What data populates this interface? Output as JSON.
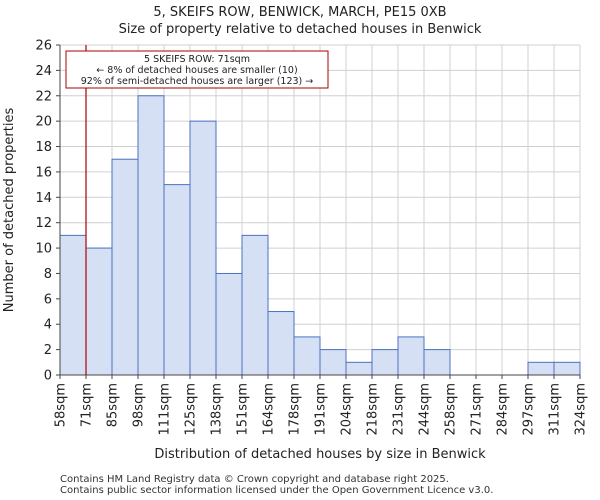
{
  "chart_data": {
    "type": "bar",
    "title_line1": "5, SKEIFS ROW, BENWICK, MARCH, PE15 0XB",
    "title_line2": "Size of property relative to detached houses in Benwick",
    "xlabel": "Distribution of detached houses by size in Benwick",
    "ylabel": "Number of detached properties",
    "bin_edges": [
      58,
      71,
      85,
      98,
      111,
      125,
      138,
      151,
      164,
      178,
      191,
      204,
      218,
      231,
      244,
      258,
      271,
      284,
      297,
      311,
      324
    ],
    "tick_labels": [
      "58sqm",
      "71sqm",
      "85sqm",
      "98sqm",
      "111sqm",
      "125sqm",
      "138sqm",
      "151sqm",
      "164sqm",
      "178sqm",
      "191sqm",
      "204sqm",
      "218sqm",
      "231sqm",
      "244sqm",
      "258sqm",
      "271sqm",
      "284sqm",
      "297sqm",
      "311sqm",
      "324sqm"
    ],
    "values": [
      11,
      10,
      17,
      22,
      15,
      20,
      8,
      11,
      5,
      3,
      2,
      1,
      2,
      3,
      2,
      0,
      0,
      0,
      1,
      1
    ],
    "ylim": [
      0,
      26
    ],
    "yticks": [
      0,
      2,
      4,
      6,
      8,
      10,
      12,
      14,
      16,
      18,
      20,
      22,
      24,
      26
    ],
    "marker_value": 71,
    "annotation": {
      "line1": "5 SKEIFS ROW: 71sqm",
      "line2": "← 8% of detached houses are smaller (10)",
      "line3": "92% of semi-detached houses are larger (123) →"
    },
    "colors": {
      "bar_fill": "#d6e0f5",
      "bar_stroke": "#4a72c0",
      "marker": "#aa0000",
      "grid": "#d0d0d0"
    }
  },
  "footer": {
    "line1": "Contains HM Land Registry data © Crown copyright and database right 2025.",
    "line2": "Contains public sector information licensed under the Open Government Licence v3.0."
  }
}
